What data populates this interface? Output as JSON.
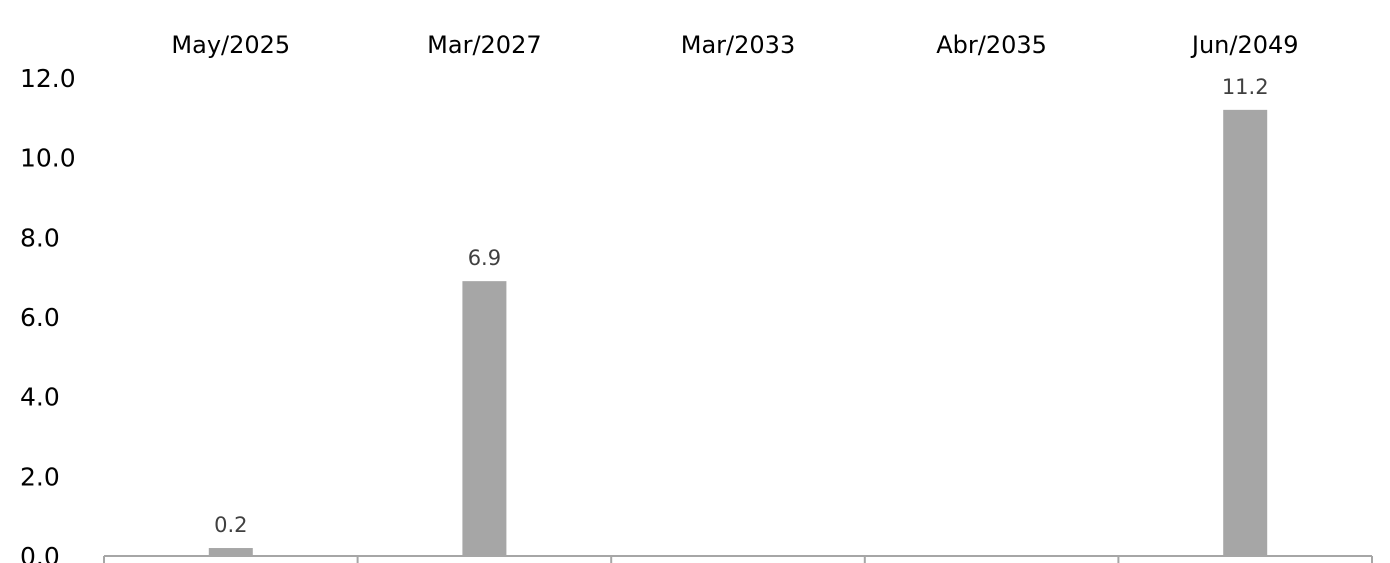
{
  "chart_data": {
    "type": "bar",
    "categories": [
      "May/2025",
      "Mar/2027",
      "Mar/2033",
      "Abr/2035",
      "Jun/2049"
    ],
    "values": [
      0.2,
      6.9,
      null,
      null,
      11.2
    ],
    "value_labels": [
      "0.2",
      "6.9",
      "",
      "",
      "11.2"
    ],
    "ylim": [
      0,
      12
    ],
    "yticks": [
      0,
      2,
      4,
      6,
      8,
      10,
      12
    ],
    "ytick_labels": [
      "0.0",
      "2.0",
      "4.0",
      "6.0",
      "8.0",
      "10.0",
      "12.0"
    ],
    "category_axis_position": "top",
    "grid": false,
    "legend": "none",
    "colors": {
      "bar": "#a6a6a6",
      "axis": "#a6a6a6",
      "text": "#000000",
      "data_label": "#404040"
    }
  }
}
